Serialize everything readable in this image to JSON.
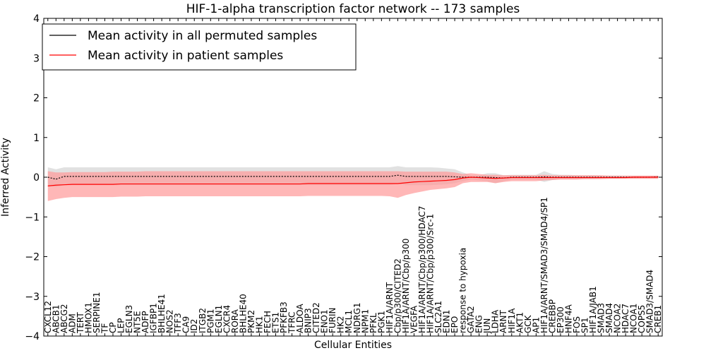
{
  "chart_data": {
    "type": "line",
    "title": "HIF-1-alpha transcription factor network -- 173 samples",
    "xlabel": "Cellular Entities",
    "ylabel": "Inferred Activity",
    "ylim": [
      -4,
      4
    ],
    "yticks": [
      -4,
      -3,
      -2,
      -1,
      0,
      1,
      2,
      3,
      4
    ],
    "grid": false,
    "legend_position": "top-left",
    "categories": [
      "CXCL12",
      "ABCB1",
      "ABCG2",
      "ADM",
      "TERT",
      "HMOX1",
      "SERPINE1",
      "TF",
      "CP",
      "LEP",
      "EGLN3",
      "NT5E",
      "ADFP",
      "IGFBP1",
      "BHLHE41",
      "NOS2",
      "TFF3",
      "CA9",
      "ID2",
      "ITGB2",
      "PGM1",
      "EGLN1",
      "CXCR4",
      "RORA",
      "BHLHE40",
      "PKM2",
      "HK1",
      "FECH",
      "ETS1",
      "PFKFB3",
      "TFRC",
      "ALDOA",
      "BNIP3",
      "CITED2",
      "ENO1",
      "FURIN",
      "HK2",
      "MCL1",
      "NDRG1",
      "NPM1",
      "PFKL",
      "PGK1",
      "HIF1A/ARNT",
      "Cbp/p300/CITED2",
      "HIF1A/ARNT/Cbp/p300",
      "VEGFA",
      "HIF1A/ARNT/Cbp/p300/HDAC7",
      "HIF1A/ARNT/Cbp/p300/Src-1",
      "SLC2A1",
      "EDN1",
      "EPO",
      "response to hypoxia",
      "GATA2",
      "ENG",
      "JUN",
      "LDHA",
      "ARNT",
      "HIF1A",
      "AKT1",
      "GCK",
      "AP1",
      "HIF1A/ARNT/SMAD3/SMAD4/SP1",
      "CREBBP",
      "EP300",
      "HNF4A",
      "FOS",
      "SP1",
      "HIF1A/JAB1",
      "SMAD3",
      "SMAD4",
      "NCOA2",
      "HDAC7",
      "NCOA1",
      "COPS5",
      "SMAD3/SMAD4",
      "CREB1"
    ],
    "series": [
      {
        "name": "Mean activity in all permuted samples",
        "color": "#000000",
        "band_color": "#d9d9d9",
        "values": [
          0.0,
          -0.05,
          0.02,
          0.02,
          0.02,
          0.02,
          0.02,
          0.02,
          0.02,
          0.02,
          0.02,
          0.02,
          0.02,
          0.02,
          0.02,
          0.02,
          0.02,
          0.02,
          0.02,
          0.02,
          0.02,
          0.02,
          0.02,
          0.02,
          0.02,
          0.02,
          0.02,
          0.02,
          0.02,
          0.02,
          0.02,
          0.02,
          0.02,
          0.02,
          0.02,
          0.02,
          0.02,
          0.02,
          0.02,
          0.02,
          0.02,
          0.02,
          0.02,
          0.05,
          0.02,
          0.02,
          0.02,
          0.02,
          0.02,
          0.02,
          0.01,
          0.0,
          0.0,
          0.0,
          0.0,
          -0.01,
          -0.02,
          0.0,
          0.0,
          0.0,
          0.0,
          0.01,
          0.0,
          0.0,
          0.0,
          0.0,
          0.0,
          0.0,
          0.0,
          0.0,
          0.0,
          0.0,
          0.0,
          0.0,
          0.0,
          0.01
        ],
        "upper": [
          0.25,
          0.2,
          0.25,
          0.25,
          0.25,
          0.25,
          0.25,
          0.25,
          0.25,
          0.25,
          0.25,
          0.25,
          0.25,
          0.25,
          0.25,
          0.25,
          0.25,
          0.25,
          0.25,
          0.25,
          0.25,
          0.25,
          0.25,
          0.25,
          0.25,
          0.25,
          0.25,
          0.25,
          0.25,
          0.25,
          0.25,
          0.25,
          0.25,
          0.25,
          0.25,
          0.25,
          0.25,
          0.25,
          0.25,
          0.25,
          0.25,
          0.25,
          0.25,
          0.28,
          0.25,
          0.25,
          0.25,
          0.25,
          0.24,
          0.22,
          0.2,
          0.12,
          0.05,
          0.05,
          0.1,
          0.1,
          0.05,
          0.06,
          0.06,
          0.06,
          0.06,
          0.15,
          0.08,
          0.06,
          0.06,
          0.05,
          0.05,
          0.05,
          0.04,
          0.04,
          0.04,
          0.03,
          0.03,
          0.03,
          0.03,
          0.03
        ],
        "lower": [
          -0.2,
          -0.25,
          -0.2,
          -0.2,
          -0.2,
          -0.2,
          -0.2,
          -0.2,
          -0.2,
          -0.2,
          -0.2,
          -0.2,
          -0.2,
          -0.2,
          -0.2,
          -0.2,
          -0.2,
          -0.2,
          -0.2,
          -0.2,
          -0.2,
          -0.2,
          -0.2,
          -0.2,
          -0.2,
          -0.2,
          -0.2,
          -0.2,
          -0.2,
          -0.2,
          -0.2,
          -0.2,
          -0.2,
          -0.2,
          -0.2,
          -0.2,
          -0.2,
          -0.2,
          -0.2,
          -0.2,
          -0.2,
          -0.2,
          -0.2,
          -0.17,
          -0.2,
          -0.2,
          -0.2,
          -0.2,
          -0.19,
          -0.18,
          -0.15,
          -0.1,
          -0.06,
          -0.08,
          -0.1,
          -0.15,
          -0.1,
          -0.06,
          -0.06,
          -0.06,
          -0.06,
          -0.12,
          -0.07,
          -0.05,
          -0.05,
          -0.05,
          -0.05,
          -0.05,
          -0.04,
          -0.04,
          -0.04,
          -0.03,
          -0.03,
          -0.03,
          -0.03,
          -0.03
        ]
      },
      {
        "name": "Mean activity in patient samples",
        "color": "#ff0000",
        "band_color": "#ff9999",
        "values": [
          -0.22,
          -0.2,
          -0.19,
          -0.18,
          -0.18,
          -0.18,
          -0.18,
          -0.18,
          -0.18,
          -0.17,
          -0.17,
          -0.17,
          -0.17,
          -0.17,
          -0.17,
          -0.17,
          -0.17,
          -0.17,
          -0.17,
          -0.17,
          -0.17,
          -0.17,
          -0.17,
          -0.17,
          -0.17,
          -0.17,
          -0.17,
          -0.17,
          -0.17,
          -0.17,
          -0.17,
          -0.17,
          -0.16,
          -0.16,
          -0.16,
          -0.16,
          -0.16,
          -0.16,
          -0.16,
          -0.16,
          -0.16,
          -0.16,
          -0.16,
          -0.16,
          -0.14,
          -0.12,
          -0.11,
          -0.1,
          -0.09,
          -0.08,
          -0.06,
          -0.02,
          0.0,
          -0.01,
          -0.02,
          -0.03,
          -0.02,
          -0.01,
          -0.01,
          -0.01,
          -0.01,
          -0.01,
          -0.01,
          -0.01,
          -0.01,
          -0.01,
          -0.01,
          -0.01,
          -0.01,
          -0.01,
          -0.01,
          -0.01,
          0.0,
          0.0,
          0.0,
          0.0
        ],
        "upper": [
          0.15,
          0.12,
          0.12,
          0.13,
          0.13,
          0.13,
          0.13,
          0.13,
          0.14,
          0.14,
          0.14,
          0.14,
          0.15,
          0.15,
          0.15,
          0.15,
          0.15,
          0.15,
          0.15,
          0.15,
          0.15,
          0.15,
          0.15,
          0.15,
          0.15,
          0.15,
          0.15,
          0.15,
          0.15,
          0.15,
          0.15,
          0.15,
          0.15,
          0.15,
          0.15,
          0.15,
          0.15,
          0.15,
          0.15,
          0.15,
          0.15,
          0.15,
          0.15,
          0.15,
          0.14,
          0.14,
          0.14,
          0.14,
          0.14,
          0.14,
          0.12,
          0.08,
          0.1,
          0.08,
          0.06,
          0.06,
          0.05,
          0.05,
          0.05,
          0.05,
          0.05,
          0.06,
          0.05,
          0.05,
          0.05,
          0.05,
          0.05,
          0.05,
          0.05,
          0.04,
          0.04,
          0.04,
          0.04,
          0.04,
          0.04,
          0.04
        ],
        "lower": [
          -0.6,
          -0.55,
          -0.52,
          -0.5,
          -0.5,
          -0.5,
          -0.5,
          -0.5,
          -0.5,
          -0.49,
          -0.49,
          -0.49,
          -0.48,
          -0.48,
          -0.48,
          -0.48,
          -0.48,
          -0.48,
          -0.48,
          -0.48,
          -0.48,
          -0.48,
          -0.48,
          -0.48,
          -0.48,
          -0.48,
          -0.48,
          -0.48,
          -0.48,
          -0.48,
          -0.48,
          -0.48,
          -0.47,
          -0.47,
          -0.47,
          -0.47,
          -0.47,
          -0.47,
          -0.47,
          -0.47,
          -0.47,
          -0.47,
          -0.48,
          -0.52,
          -0.45,
          -0.4,
          -0.36,
          -0.32,
          -0.3,
          -0.28,
          -0.25,
          -0.15,
          -0.12,
          -0.12,
          -0.12,
          -0.15,
          -0.12,
          -0.1,
          -0.1,
          -0.1,
          -0.1,
          -0.08,
          -0.07,
          -0.06,
          -0.06,
          -0.06,
          -0.05,
          -0.05,
          -0.05,
          -0.04,
          -0.04,
          -0.04,
          -0.04,
          -0.04,
          -0.04,
          -0.04
        ]
      }
    ]
  }
}
